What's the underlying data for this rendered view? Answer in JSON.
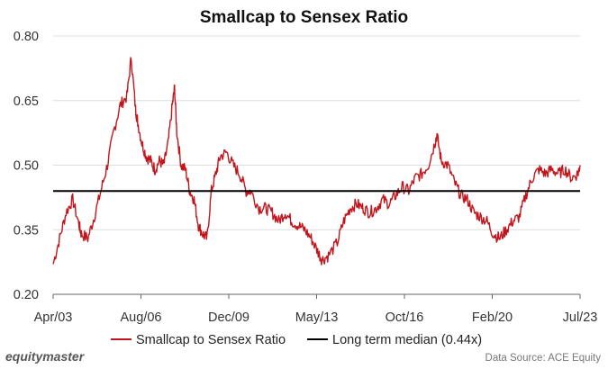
{
  "chart_data": {
    "type": "line",
    "title": "Smallcap to Sensex Ratio",
    "xlabel": "",
    "ylabel": "",
    "ylim": [
      0.2,
      0.8
    ],
    "y_ticks": [
      "0.20",
      "0.35",
      "0.50",
      "0.65",
      "0.80"
    ],
    "x_ticks": [
      "Apr/03",
      "Aug/06",
      "Dec/09",
      "May/13",
      "Oct/16",
      "Feb/20",
      "Jul/23"
    ],
    "grid": "horizontal",
    "legend_position": "bottom",
    "series": [
      {
        "name": "Smallcap to Sensex Ratio",
        "color": "#c0161c",
        "x": [
          "2003-04",
          "2003-07",
          "2003-10",
          "2004-01",
          "2004-04",
          "2004-05",
          "2004-08",
          "2004-11",
          "2005-02",
          "2005-05",
          "2005-08",
          "2005-11",
          "2006-02",
          "2006-04",
          "2006-06",
          "2006-07",
          "2006-09",
          "2006-11",
          "2007-01",
          "2007-03",
          "2007-05",
          "2007-07",
          "2007-09",
          "2007-11",
          "2007-12",
          "2008-01",
          "2008-03",
          "2008-05",
          "2008-07",
          "2008-09",
          "2008-11",
          "2009-01",
          "2009-03",
          "2009-05",
          "2009-07",
          "2009-09",
          "2009-12",
          "2010-03",
          "2010-06",
          "2010-09",
          "2010-11",
          "2011-03",
          "2011-06",
          "2011-09",
          "2011-12",
          "2012-03",
          "2012-06",
          "2012-09",
          "2012-12",
          "2013-03",
          "2013-06",
          "2013-08",
          "2013-11",
          "2014-03",
          "2014-06",
          "2014-09",
          "2014-12",
          "2015-03",
          "2015-06",
          "2015-09",
          "2015-12",
          "2016-03",
          "2016-06",
          "2016-09",
          "2016-12",
          "2017-03",
          "2017-06",
          "2017-09",
          "2017-12",
          "2018-01",
          "2018-03",
          "2018-06",
          "2018-09",
          "2018-12",
          "2019-03",
          "2019-06",
          "2019-09",
          "2019-12",
          "2020-03",
          "2020-06",
          "2020-09",
          "2020-12",
          "2021-03",
          "2021-06",
          "2021-09",
          "2021-12",
          "2022-03",
          "2022-06",
          "2022-09",
          "2022-12",
          "2023-03",
          "2023-06",
          "2023-07"
        ],
        "values": [
          0.27,
          0.33,
          0.39,
          0.42,
          0.36,
          0.34,
          0.33,
          0.38,
          0.44,
          0.5,
          0.58,
          0.64,
          0.66,
          0.75,
          0.63,
          0.6,
          0.55,
          0.52,
          0.51,
          0.49,
          0.51,
          0.5,
          0.55,
          0.64,
          0.68,
          0.58,
          0.5,
          0.49,
          0.44,
          0.42,
          0.36,
          0.34,
          0.33,
          0.44,
          0.48,
          0.52,
          0.53,
          0.5,
          0.48,
          0.44,
          0.44,
          0.4,
          0.4,
          0.39,
          0.37,
          0.39,
          0.37,
          0.36,
          0.35,
          0.33,
          0.3,
          0.28,
          0.29,
          0.32,
          0.37,
          0.4,
          0.41,
          0.4,
          0.39,
          0.4,
          0.42,
          0.41,
          0.43,
          0.45,
          0.44,
          0.47,
          0.48,
          0.5,
          0.55,
          0.57,
          0.51,
          0.5,
          0.46,
          0.43,
          0.42,
          0.39,
          0.38,
          0.37,
          0.34,
          0.33,
          0.35,
          0.37,
          0.38,
          0.43,
          0.47,
          0.49,
          0.48,
          0.49,
          0.48,
          0.49,
          0.47,
          0.48,
          0.5
        ]
      },
      {
        "name": "Long term median (0.44x)",
        "color": "#000000",
        "x": [
          "2003-04",
          "2023-07"
        ],
        "values": [
          0.44,
          0.44
        ]
      }
    ]
  },
  "branding": {
    "logo_text": "equitymaster",
    "source_text": "Data Source: ACE Equity"
  }
}
